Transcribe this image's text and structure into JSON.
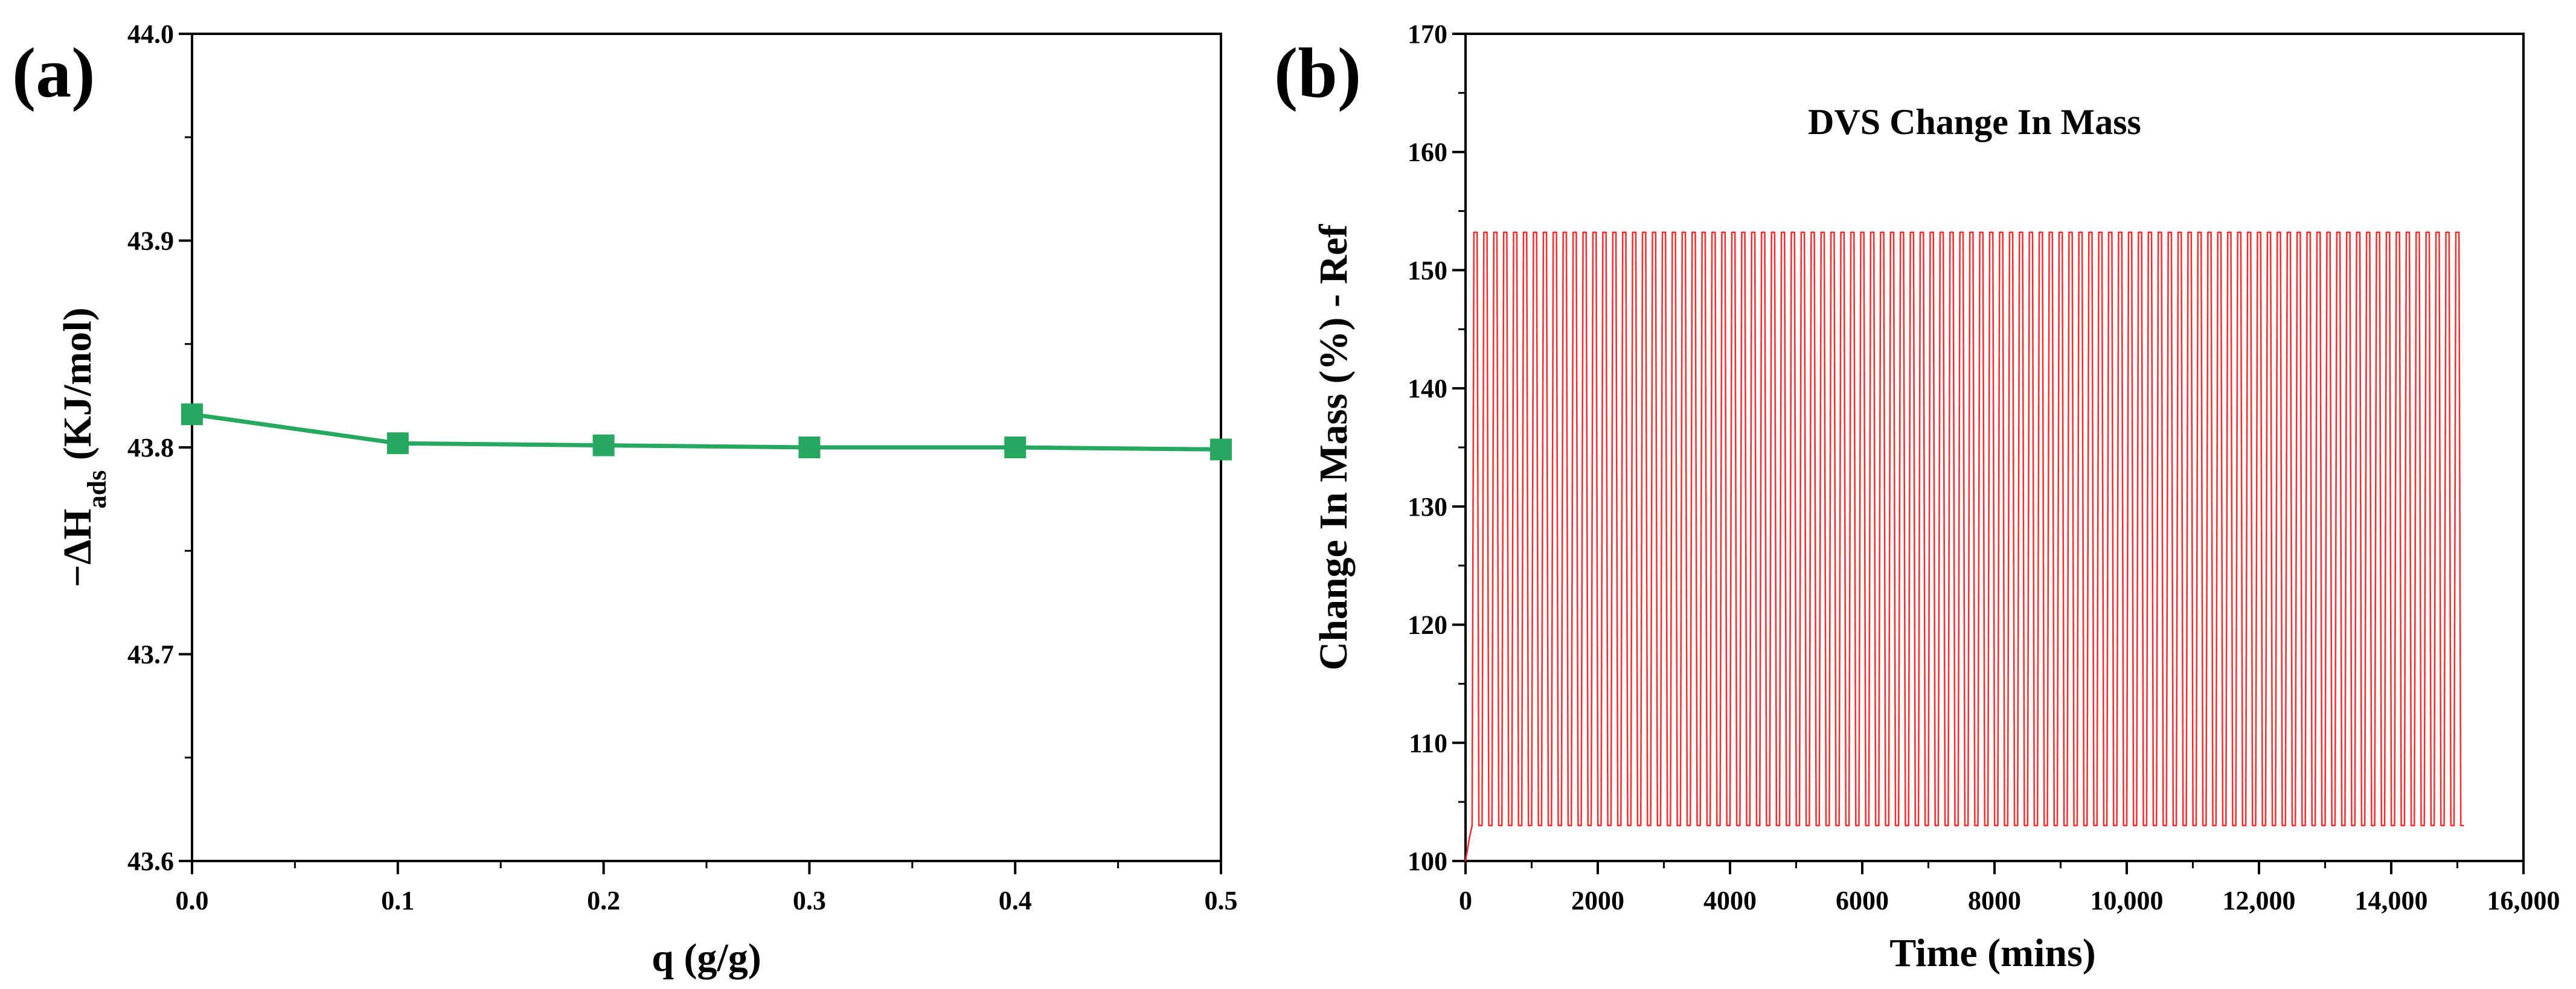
{
  "figure_labels": {
    "a": "(a)",
    "b": "(b)"
  },
  "chart_data": [
    {
      "id": "a",
      "type": "line",
      "title": "",
      "xlabel": "q (g/g)",
      "ylabel_main": "−ΔH",
      "ylabel_sub": "ads",
      "ylabel_tail": " (KJ/mol)",
      "xlim": [
        0.0,
        0.5
      ],
      "ylim": [
        43.6,
        44.0
      ],
      "xticks": [
        "0.0",
        "0.1",
        "0.2",
        "0.3",
        "0.4",
        "0.5"
      ],
      "yticks": [
        "43.6",
        "43.7",
        "43.8",
        "43.9",
        "44.0"
      ],
      "series": [
        {
          "name": "-ΔHads",
          "color": "#27a860",
          "marker": "square",
          "x": [
            0.0,
            0.1,
            0.2,
            0.3,
            0.4,
            0.5
          ],
          "y": [
            43.816,
            43.802,
            43.801,
            43.8,
            43.8,
            43.799
          ]
        }
      ]
    },
    {
      "id": "b",
      "type": "line",
      "title": "DVS Change In Mass",
      "xlabel": "Time (mins)",
      "ylabel": "Change In Mass (%) - Ref",
      "xlim": [
        0,
        16000
      ],
      "ylim": [
        100,
        170
      ],
      "xticks": [
        "0",
        "2000",
        "4000",
        "6000",
        "8000",
        "10,000",
        "12,000",
        "14,000",
        "16,000"
      ],
      "yticks": [
        "100",
        "110",
        "120",
        "130",
        "140",
        "150",
        "160",
        "170"
      ],
      "series": [
        {
          "name": "Change In Mass",
          "color": "#ff2a2a",
          "start_time": 100,
          "end_time": 15100,
          "initial_value": 100,
          "cycle_count": 100,
          "cycle_max": 153.2,
          "cycle_min": 103.0
        }
      ]
    }
  ]
}
